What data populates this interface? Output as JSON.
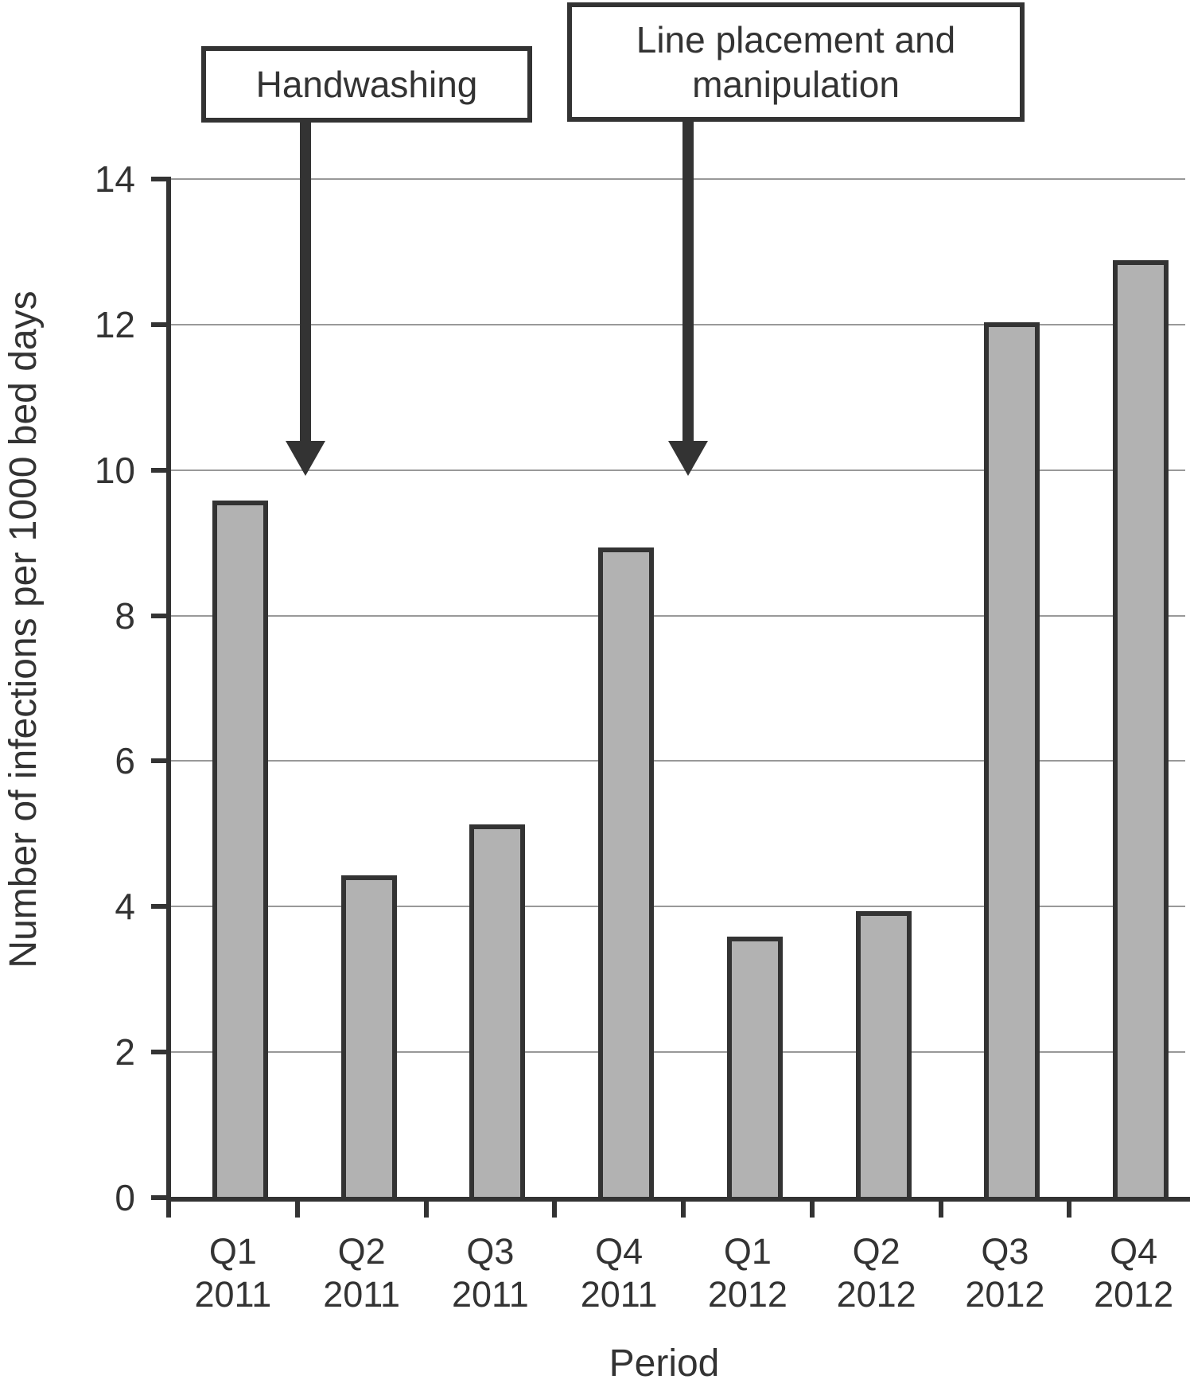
{
  "figure": {
    "background_color": "#ffffff",
    "text_color": "#333333",
    "gridline_color": "#999999",
    "axis_color": "#333333"
  },
  "chart_data": {
    "type": "bar",
    "title": "",
    "xlabel": "Period",
    "ylabel": "Number of infections per 1000 bed days",
    "categories": [
      {
        "quarter": "Q1",
        "year": "2011"
      },
      {
        "quarter": "Q2",
        "year": "2011"
      },
      {
        "quarter": "Q3",
        "year": "2011"
      },
      {
        "quarter": "Q4",
        "year": "2011"
      },
      {
        "quarter": "Q1",
        "year": "2012"
      },
      {
        "quarter": "Q2",
        "year": "2012"
      },
      {
        "quarter": "Q3",
        "year": "2012"
      },
      {
        "quarter": "Q4",
        "year": "2012"
      }
    ],
    "values": [
      9.55,
      4.4,
      5.1,
      8.9,
      3.55,
      3.9,
      12.0,
      12.85
    ],
    "ylim": [
      0,
      14
    ],
    "yticks": [
      0,
      2,
      4,
      6,
      8,
      10,
      12,
      14
    ],
    "grid": true,
    "legend": false,
    "bar_color": "#b2b2b2",
    "bar_border_color": "#333333",
    "annotations": [
      {
        "label": "Handwashing",
        "lines": [
          "Handwashing"
        ],
        "arrow_between": [
          "Q1 2011",
          "Q2 2011"
        ],
        "arrow_tip_value": 10
      },
      {
        "label": "Line placement and manipulation",
        "lines": [
          "Line placement and",
          "manipulation"
        ],
        "arrow_between": [
          "Q4 2011",
          "Q1 2012"
        ],
        "arrow_tip_value": 10
      }
    ]
  }
}
